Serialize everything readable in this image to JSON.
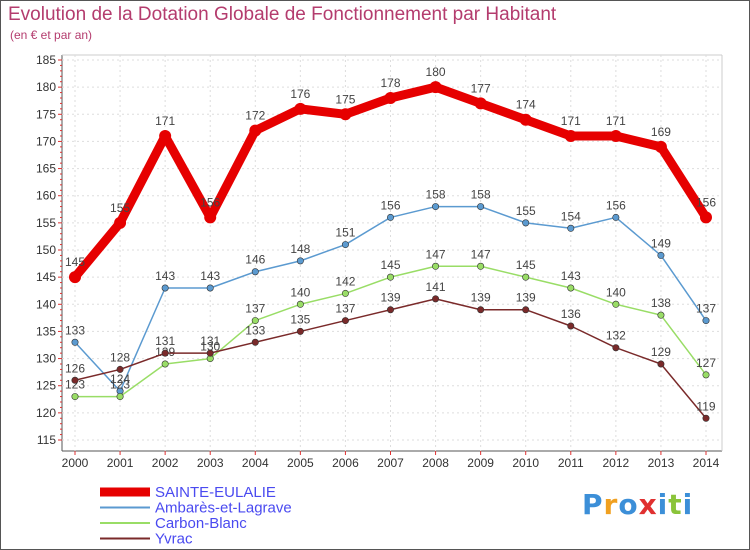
{
  "title": "Evolution de la Dotation Globale de Fonctionnement par Habitant",
  "subtitle": "(en € et par an)",
  "brand": {
    "logo_text": "Proxiti"
  },
  "chart_data": {
    "type": "line",
    "title": "Evolution de la Dotation Globale de Fonctionnement par Habitant",
    "subtitle": "(en € et par an)",
    "xlabel": "",
    "ylabel": "",
    "ylim": [
      115,
      185
    ],
    "yticks": [
      115,
      120,
      125,
      130,
      135,
      140,
      145,
      150,
      155,
      160,
      165,
      170,
      175,
      180,
      185
    ],
    "categories": [
      "2000",
      "2001",
      "2002",
      "2003",
      "2004",
      "2005",
      "2006",
      "2007",
      "2008",
      "2009",
      "2010",
      "2011",
      "2012",
      "2013",
      "2014"
    ],
    "grid": true,
    "legend_position": "bottom-left",
    "series": [
      {
        "name": "SAINTE-EULALIE",
        "color": "#e60000",
        "bold": true,
        "values": [
          145,
          155,
          171,
          156,
          172,
          176,
          175,
          178,
          180,
          177,
          174,
          171,
          171,
          169,
          156
        ]
      },
      {
        "name": "Ambarès-et-Lagrave",
        "color": "#5b9ad0",
        "bold": false,
        "values": [
          133,
          124,
          143,
          143,
          146,
          148,
          151,
          156,
          158,
          158,
          155,
          154,
          156,
          149,
          137
        ]
      },
      {
        "name": "Carbon-Blanc",
        "color": "#99dd66",
        "bold": false,
        "values": [
          123,
          123,
          129,
          130,
          137,
          140,
          142,
          145,
          147,
          147,
          145,
          143,
          140,
          138,
          127
        ]
      },
      {
        "name": "Yvrac",
        "color": "#7a2a2a",
        "bold": false,
        "values": [
          126,
          128,
          131,
          131,
          133,
          135,
          137,
          139,
          141,
          139,
          139,
          136,
          132,
          129,
          119
        ]
      }
    ]
  }
}
